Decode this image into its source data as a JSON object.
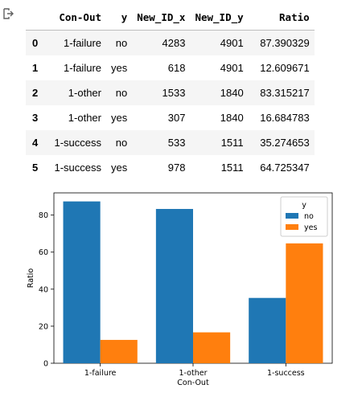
{
  "output_icon": "output-arrow-icon",
  "table": {
    "columns": [
      "",
      "Con-Out",
      "y",
      "New_ID_x",
      "New_ID_y",
      "Ratio"
    ],
    "rows": [
      {
        "index": "0",
        "con_out": "1-failure",
        "y": "no",
        "new_id_x": "4283",
        "new_id_y": "4901",
        "ratio": "87.390329"
      },
      {
        "index": "1",
        "con_out": "1-failure",
        "y": "yes",
        "new_id_x": "618",
        "new_id_y": "4901",
        "ratio": "12.609671"
      },
      {
        "index": "2",
        "con_out": "1-other",
        "y": "no",
        "new_id_x": "1533",
        "new_id_y": "1840",
        "ratio": "83.315217"
      },
      {
        "index": "3",
        "con_out": "1-other",
        "y": "yes",
        "new_id_x": "307",
        "new_id_y": "1840",
        "ratio": "16.684783"
      },
      {
        "index": "4",
        "con_out": "1-success",
        "y": "no",
        "new_id_x": "533",
        "new_id_y": "1511",
        "ratio": "35.274653"
      },
      {
        "index": "5",
        "con_out": "1-success",
        "y": "yes",
        "new_id_x": "978",
        "new_id_y": "1511",
        "ratio": "64.725347"
      }
    ]
  },
  "chart_data": {
    "type": "bar",
    "categories": [
      "1-failure",
      "1-other",
      "1-success"
    ],
    "series": [
      {
        "name": "no",
        "color": "#1f77b4",
        "values": [
          87.390329,
          83.315217,
          35.274653
        ]
      },
      {
        "name": "yes",
        "color": "#ff7f0e",
        "values": [
          12.609671,
          16.684783,
          64.725347
        ]
      }
    ],
    "xlabel": "Con-Out",
    "ylabel": "Ratio",
    "ylim": [
      0,
      92
    ],
    "yticks": [
      0,
      20,
      40,
      60,
      80
    ],
    "legend": {
      "title": "y",
      "placement": "top-right"
    },
    "grid": false
  }
}
